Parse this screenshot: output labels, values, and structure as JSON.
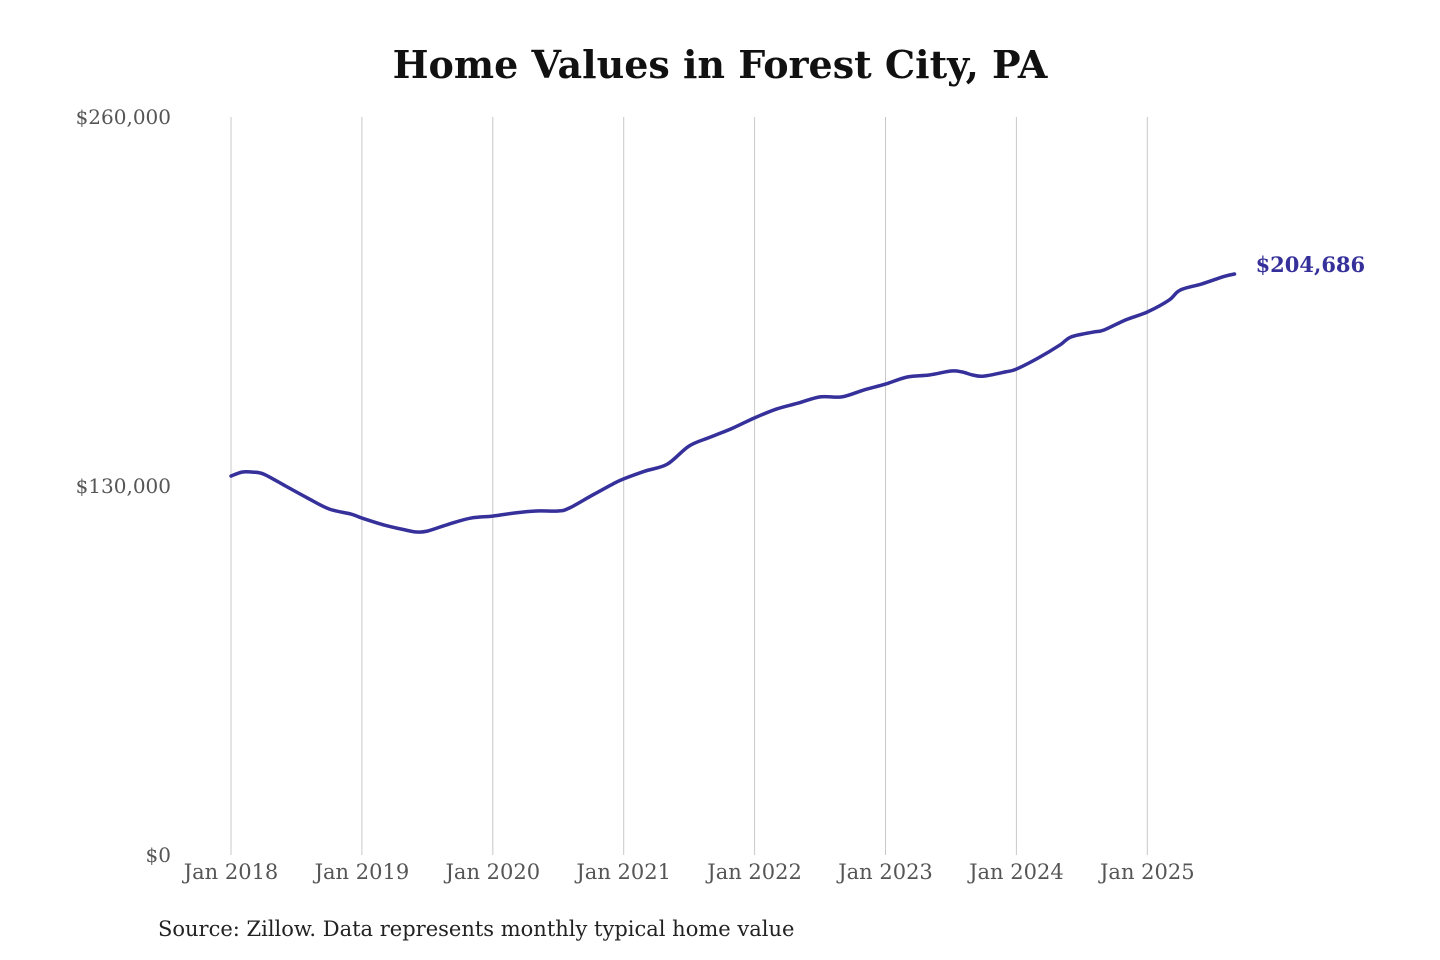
{
  "chart_data": {
    "type": "line",
    "title": "Home Values in Forest City, PA",
    "source": "Source: Zillow. Data represents monthly typical home value",
    "xlabel": "",
    "ylabel": "",
    "ylim": [
      0,
      260000
    ],
    "yticks": [
      0,
      130000,
      260000
    ],
    "ytick_labels": [
      "$0",
      "$130,000",
      "$260,000"
    ],
    "xticks": [
      2018,
      2019,
      2020,
      2021,
      2022,
      2023,
      2024,
      2025
    ],
    "xtick_labels": [
      "Jan 2018",
      "Jan 2019",
      "Jan 2020",
      "Jan 2021",
      "Jan 2022",
      "Jan 2023",
      "Jan 2024",
      "Jan 2025"
    ],
    "grid": "vertical",
    "line_color": "#35309a",
    "end_label": "$204,686",
    "series": [
      {
        "name": "Typical home value",
        "points": [
          [
            "2018-01",
            133500
          ],
          [
            "2018-02",
            134900
          ],
          [
            "2018-03",
            134900
          ],
          [
            "2018-04",
            134200
          ],
          [
            "2018-06",
            130000
          ],
          [
            "2018-08",
            125800
          ],
          [
            "2018-10",
            121900
          ],
          [
            "2018-12",
            120100
          ],
          [
            "2019-01",
            118700
          ],
          [
            "2019-03",
            116300
          ],
          [
            "2019-05",
            114500
          ],
          [
            "2019-06",
            113800
          ],
          [
            "2019-07",
            114100
          ],
          [
            "2019-09",
            116600
          ],
          [
            "2019-11",
            118700
          ],
          [
            "2020-01",
            119400
          ],
          [
            "2020-03",
            120500
          ],
          [
            "2020-05",
            121200
          ],
          [
            "2020-07",
            121200
          ],
          [
            "2020-08",
            122200
          ],
          [
            "2020-10",
            126500
          ],
          [
            "2020-12",
            130700
          ],
          [
            "2021-01",
            132500
          ],
          [
            "2021-03",
            135300
          ],
          [
            "2021-05",
            137700
          ],
          [
            "2021-07",
            144100
          ],
          [
            "2021-09",
            147300
          ],
          [
            "2021-11",
            150400
          ],
          [
            "2022-01",
            154000
          ],
          [
            "2022-03",
            157100
          ],
          [
            "2022-05",
            159200
          ],
          [
            "2022-07",
            161400
          ],
          [
            "2022-09",
            161400
          ],
          [
            "2022-11",
            163800
          ],
          [
            "2023-01",
            165900
          ],
          [
            "2023-03",
            168400
          ],
          [
            "2023-05",
            169100
          ],
          [
            "2023-07",
            170500
          ],
          [
            "2023-08",
            170200
          ],
          [
            "2023-09",
            169100
          ],
          [
            "2023-10",
            168700
          ],
          [
            "2023-12",
            170200
          ],
          [
            "2024-01",
            171200
          ],
          [
            "2024-03",
            175100
          ],
          [
            "2024-05",
            179700
          ],
          [
            "2024-06",
            182500
          ],
          [
            "2024-08",
            184200
          ],
          [
            "2024-09",
            184900
          ],
          [
            "2024-11",
            188500
          ],
          [
            "2025-01",
            191300
          ],
          [
            "2025-03",
            195500
          ],
          [
            "2025-04",
            199000
          ],
          [
            "2025-06",
            201200
          ],
          [
            "2025-08",
            203800
          ],
          [
            "2025-09",
            204686
          ]
        ]
      }
    ]
  }
}
